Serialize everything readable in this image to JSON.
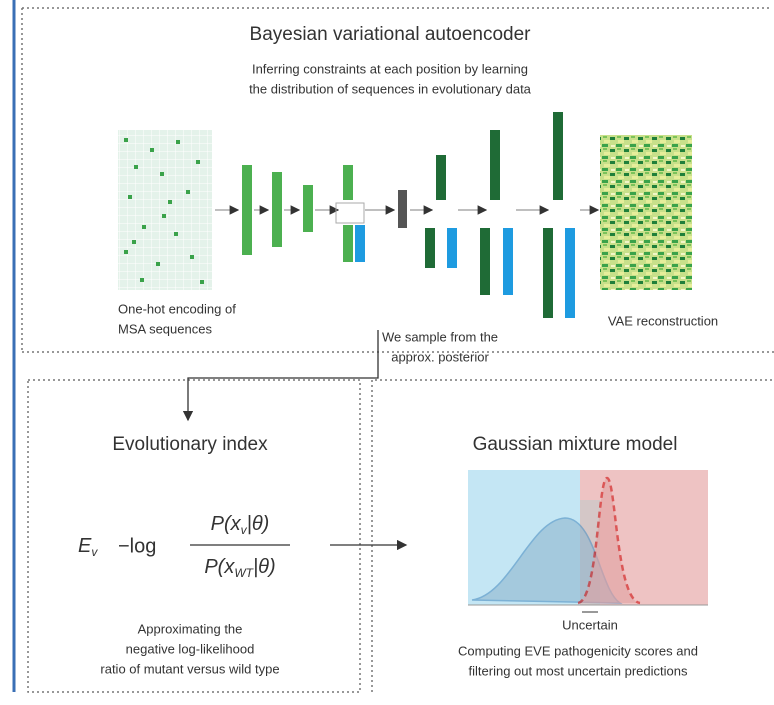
{
  "vae": {
    "title": "Bayesian variational autoencoder",
    "subtitle": [
      "Inferring constraints at each position by learning",
      "the distribution of sequences in evolutionary data"
    ],
    "input_label": [
      "One-hot encoding of",
      "MSA sequences"
    ],
    "sample_label": [
      "We sample from the",
      "approx. posterior"
    ],
    "output_label": "VAE reconstruction"
  },
  "evol": {
    "title": "Evolutionary index",
    "formula": {
      "lhs": "E",
      "lhs_sub": "v",
      "op": "−log",
      "num": [
        "P(x",
        "v",
        "|θ)"
      ],
      "den": [
        "P(x",
        "WT",
        "|θ)"
      ]
    },
    "caption": [
      "Approximating the",
      "negative log-likelihood",
      "ratio of mutant versus wild type"
    ]
  },
  "gmm": {
    "title": "Gaussian mixture model",
    "uncertain": "Uncertain",
    "caption": [
      "Computing EVE pathogenicity scores and",
      "filtering out most uncertain predictions"
    ]
  }
}
